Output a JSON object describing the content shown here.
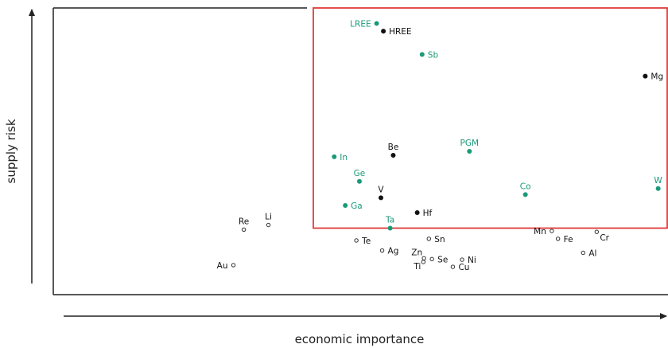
{
  "chart_data": {
    "type": "scatter",
    "title": "",
    "xlabel": "economic importance",
    "ylabel": "supply risk",
    "xlim": [
      0,
      100
    ],
    "ylim": [
      0,
      100
    ],
    "grid": false,
    "colors": {
      "critical": "#1a9a78",
      "high": "#111111",
      "other": "#333333",
      "critical_region": "#e03a3a"
    },
    "critical_region": {
      "x0": 42.3,
      "x1": 100,
      "y0": 23.2,
      "y1": 100
    },
    "points": [
      {
        "label": "LREE",
        "x": 52.6,
        "y": 94.6,
        "group": "critical",
        "anchor": "left"
      },
      {
        "label": "HREE",
        "x": 53.7,
        "y": 91.9,
        "group": "high",
        "anchor": "right"
      },
      {
        "label": "Sb",
        "x": 60.0,
        "y": 83.8,
        "group": "critical",
        "anchor": "right"
      },
      {
        "label": "Mg",
        "x": 96.3,
        "y": 76.2,
        "group": "high",
        "anchor": "right"
      },
      {
        "label": "In",
        "x": 45.7,
        "y": 48.1,
        "group": "critical",
        "anchor": "right"
      },
      {
        "label": "Be",
        "x": 55.3,
        "y": 48.6,
        "group": "high",
        "anchor": "above"
      },
      {
        "label": "PGM",
        "x": 67.7,
        "y": 50.0,
        "group": "critical",
        "anchor": "above"
      },
      {
        "label": "Ge",
        "x": 49.8,
        "y": 39.5,
        "group": "critical",
        "anchor": "above"
      },
      {
        "label": "V",
        "x": 53.3,
        "y": 33.8,
        "group": "high",
        "anchor": "above"
      },
      {
        "label": "Co",
        "x": 76.8,
        "y": 34.9,
        "group": "critical",
        "anchor": "above"
      },
      {
        "label": "W",
        "x": 98.4,
        "y": 37.0,
        "group": "critical",
        "anchor": "above"
      },
      {
        "label": "Ga",
        "x": 47.5,
        "y": 31.1,
        "group": "critical",
        "anchor": "right"
      },
      {
        "label": "Hf",
        "x": 59.2,
        "y": 28.6,
        "group": "high",
        "anchor": "right"
      },
      {
        "label": "Ta",
        "x": 54.8,
        "y": 23.2,
        "group": "critical",
        "anchor": "above"
      },
      {
        "label": "Re",
        "x": 31.0,
        "y": 22.7,
        "group": "other",
        "anchor": "above"
      },
      {
        "label": "Li",
        "x": 35.0,
        "y": 24.3,
        "group": "other",
        "anchor": "above"
      },
      {
        "label": "Te",
        "x": 49.3,
        "y": 18.9,
        "group": "other",
        "anchor": "right"
      },
      {
        "label": "Sn",
        "x": 61.1,
        "y": 19.5,
        "group": "other",
        "anchor": "right"
      },
      {
        "label": "Mn",
        "x": 81.1,
        "y": 22.2,
        "group": "other",
        "anchor": "left"
      },
      {
        "label": "Fe",
        "x": 82.1,
        "y": 19.5,
        "group": "other",
        "anchor": "right"
      },
      {
        "label": "Cr",
        "x": 88.4,
        "y": 21.9,
        "group": "other",
        "anchor": "belowright"
      },
      {
        "label": "Ag",
        "x": 53.5,
        "y": 15.4,
        "group": "other",
        "anchor": "right"
      },
      {
        "label": "Al",
        "x": 86.2,
        "y": 14.6,
        "group": "other",
        "anchor": "right"
      },
      {
        "label": "Zn",
        "x": 60.3,
        "y": 12.7,
        "group": "other",
        "anchor": "aboveleft"
      },
      {
        "label": "Se",
        "x": 61.6,
        "y": 12.4,
        "group": "other",
        "anchor": "right"
      },
      {
        "label": "Ni",
        "x": 66.5,
        "y": 12.2,
        "group": "other",
        "anchor": "right"
      },
      {
        "label": "Ti",
        "x": 60.2,
        "y": 11.4,
        "group": "other",
        "anchor": "belowleft"
      },
      {
        "label": "Cu",
        "x": 65.0,
        "y": 9.7,
        "group": "other",
        "anchor": "right"
      },
      {
        "label": "Au",
        "x": 29.3,
        "y": 10.3,
        "group": "other",
        "anchor": "left"
      }
    ]
  }
}
